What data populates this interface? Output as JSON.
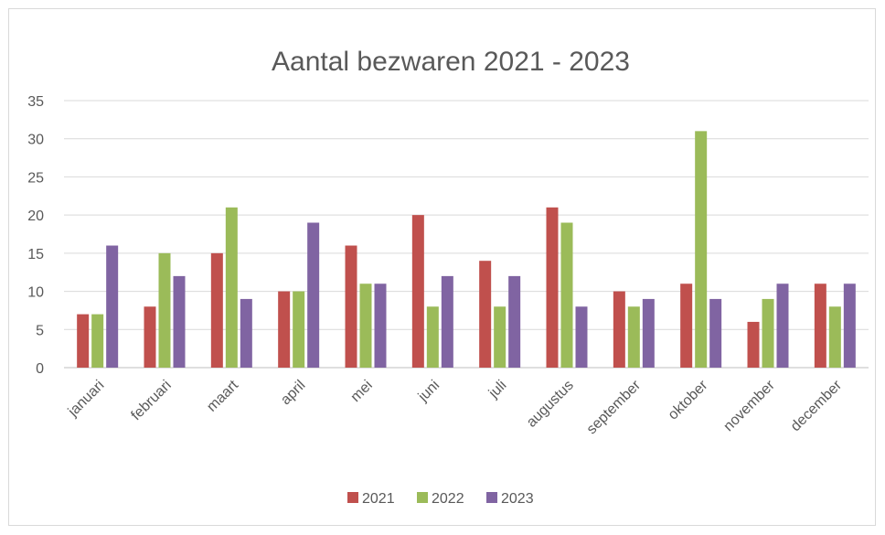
{
  "chart_data": {
    "type": "bar",
    "title": "Aantal bezwaren 2021 - 2023",
    "xlabel": "",
    "ylabel": "",
    "categories": [
      "januari",
      "februari",
      "maart",
      "april",
      "mei",
      "juni",
      "juli",
      "augustus",
      "september",
      "oktober",
      "november",
      "december"
    ],
    "series": [
      {
        "name": "2021",
        "color": "#c0504d",
        "values": [
          7,
          8,
          15,
          10,
          16,
          20,
          14,
          21,
          10,
          11,
          6,
          11
        ]
      },
      {
        "name": "2022",
        "color": "#9bbb59",
        "values": [
          7,
          15,
          21,
          10,
          11,
          8,
          8,
          19,
          8,
          31,
          9,
          8
        ]
      },
      {
        "name": "2023",
        "color": "#8064a2",
        "values": [
          16,
          12,
          9,
          19,
          11,
          12,
          12,
          8,
          9,
          9,
          11,
          11
        ]
      }
    ],
    "ylim": [
      0,
      35
    ],
    "yticks": [
      0,
      5,
      10,
      15,
      20,
      25,
      30,
      35
    ],
    "grid": true,
    "legend_position": "bottom"
  }
}
